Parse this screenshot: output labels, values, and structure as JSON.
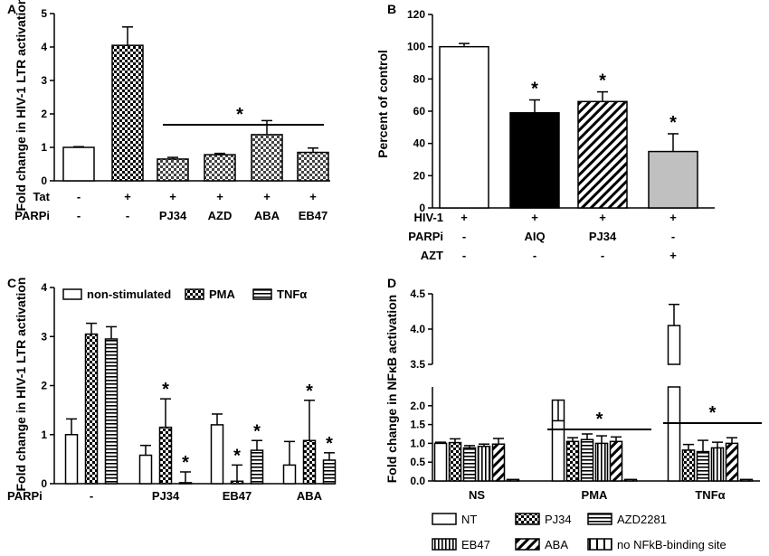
{
  "panels": [
    {
      "letter": "A",
      "chart_data": {
        "type": "bar",
        "ylabel": "Fold change in HIV-1 LTR activation",
        "ylim": [
          0,
          5
        ],
        "yticks": [
          0,
          1,
          2,
          3,
          4,
          5
        ],
        "values": [
          1.0,
          4.05,
          0.65,
          0.78,
          1.38,
          0.85
        ],
        "errors": [
          0.02,
          0.55,
          0.05,
          0.04,
          0.42,
          0.13
        ],
        "patterns": [
          "white",
          "checker",
          "checker-gray",
          "checker-gray",
          "checker-gray",
          "checker-gray"
        ],
        "significance": "*",
        "conditions": [
          {
            "name": "Tat",
            "values": [
              "-",
              "+",
              "+",
              "+",
              "+",
              "+"
            ]
          },
          {
            "name": "PARPi",
            "values": [
              "-",
              "-",
              "PJ34",
              "AZD",
              "ABA",
              "EB47"
            ]
          }
        ]
      }
    },
    {
      "letter": "B",
      "chart_data": {
        "type": "bar",
        "ylabel": "Percent of control",
        "ylim": [
          0,
          120
        ],
        "yticks": [
          0,
          20,
          40,
          60,
          80,
          100,
          120
        ],
        "values": [
          100,
          59,
          66,
          35
        ],
        "errors": [
          2,
          8,
          6,
          11
        ],
        "patterns": [
          "white",
          "black",
          "hatch",
          "gray"
        ],
        "stars": [
          "",
          "*",
          "*",
          "*"
        ],
        "conditions": [
          {
            "name": "HIV-1",
            "values": [
              "+",
              "+",
              "+",
              "+"
            ]
          },
          {
            "name": "PARPi",
            "values": [
              "-",
              "AIQ",
              "PJ34",
              "-"
            ]
          },
          {
            "name": "AZT",
            "values": [
              "-",
              "-",
              "-",
              "+"
            ]
          }
        ]
      }
    },
    {
      "letter": "C",
      "chart_data": {
        "type": "bar",
        "ylabel": "Fold change in HIV-1 LTR activation",
        "ylim": [
          0,
          4
        ],
        "yticks": [
          0,
          1,
          2,
          3,
          4
        ],
        "groups": [
          "-",
          "PJ34",
          "EB47",
          "ABA"
        ],
        "group_axis_label": "PARPi",
        "series": [
          {
            "name": "non-stimulated",
            "pattern": "white",
            "values": [
              1.0,
              0.58,
              1.2,
              0.38
            ],
            "errors": [
              0.32,
              0.2,
              0.22,
              0.48
            ],
            "stars": [
              "",
              "",
              "",
              ""
            ]
          },
          {
            "name": "PMA",
            "pattern": "checker",
            "values": [
              3.05,
              1.15,
              0.05,
              0.88
            ],
            "errors": [
              0.22,
              0.58,
              0.33,
              0.82
            ],
            "stars": [
              "",
              "*",
              "*",
              "*"
            ]
          },
          {
            "name": "TNFα",
            "pattern": "hlines",
            "values": [
              2.95,
              0.02,
              0.68,
              0.48
            ],
            "errors": [
              0.25,
              0.22,
              0.2,
              0.15
            ],
            "stars": [
              "",
              "*",
              "*",
              "*"
            ]
          }
        ]
      }
    },
    {
      "letter": "D",
      "chart_data": {
        "type": "bar",
        "ylabel": "Fold change in NFκB activation",
        "ylim": [
          0,
          4.5
        ],
        "axis_break": [
          2.5,
          3.5
        ],
        "yticks": [
          "0.0",
          "0.5",
          "1.0",
          "1.5",
          "2.0",
          "3.5",
          "4.0",
          "4.5"
        ],
        "groups": [
          "NS",
          "PMA",
          "TNFα"
        ],
        "series": [
          {
            "name": "NT",
            "pattern": "white",
            "values": [
              1.0,
              2.15,
              4.05
            ],
            "errors": [
              0.03,
              0.55,
              0.3
            ]
          },
          {
            "name": "PJ34",
            "pattern": "checker",
            "values": [
              1.02,
              1.05,
              0.82
            ],
            "errors": [
              0.1,
              0.1,
              0.15
            ]
          },
          {
            "name": "AZD2281",
            "pattern": "hlines",
            "values": [
              0.88,
              1.1,
              0.78
            ],
            "errors": [
              0.06,
              0.15,
              0.3
            ]
          },
          {
            "name": "EB47",
            "pattern": "vlines",
            "values": [
              0.92,
              1.0,
              0.88
            ],
            "errors": [
              0.06,
              0.2,
              0.15
            ]
          },
          {
            "name": "ABA",
            "pattern": "hatch",
            "values": [
              0.98,
              1.05,
              1.0
            ],
            "errors": [
              0.15,
              0.12,
              0.15
            ]
          },
          {
            "name": "no NFkB-binding site",
            "pattern": "dashbox",
            "values": [
              0.04,
              0.04,
              0.04
            ],
            "errors": [
              0,
              0,
              0
            ]
          }
        ],
        "significance": "*"
      }
    }
  ]
}
